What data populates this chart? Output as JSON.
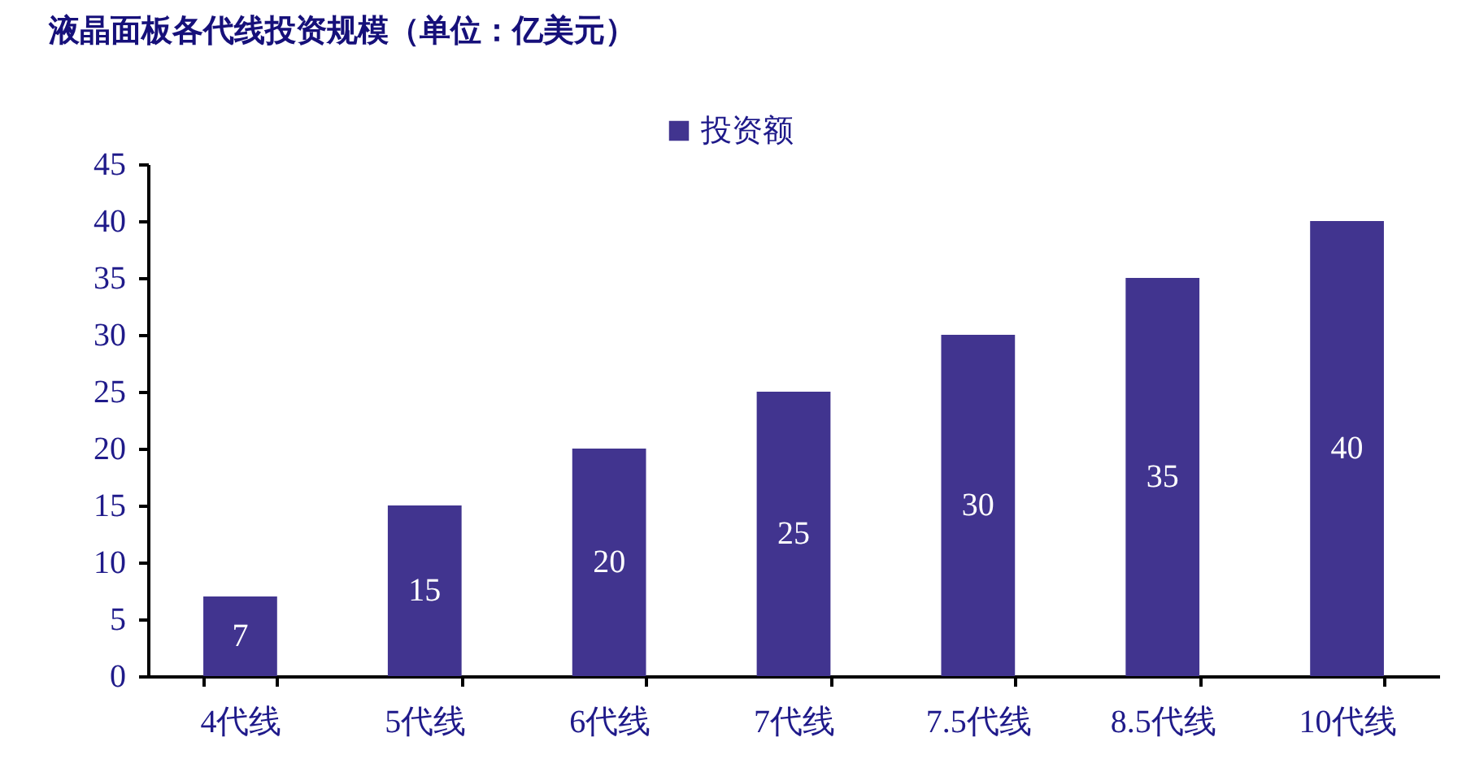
{
  "chart_data": {
    "type": "bar",
    "title": "液晶面板各代线投资规模（单位：亿美元）",
    "categories": [
      "4代线",
      "5代线",
      "6代线",
      "7代线",
      "7.5代线",
      "8.5代线",
      "10代线"
    ],
    "series": [
      {
        "name": "投资额",
        "color": "#41348f",
        "values": [
          7,
          15,
          20,
          25,
          30,
          35,
          40
        ]
      }
    ],
    "ylim": [
      0,
      45
    ],
    "yticks": [
      0,
      5,
      10,
      15,
      20,
      25,
      30,
      35,
      40,
      45
    ],
    "data_labels": true,
    "legend": "top"
  }
}
